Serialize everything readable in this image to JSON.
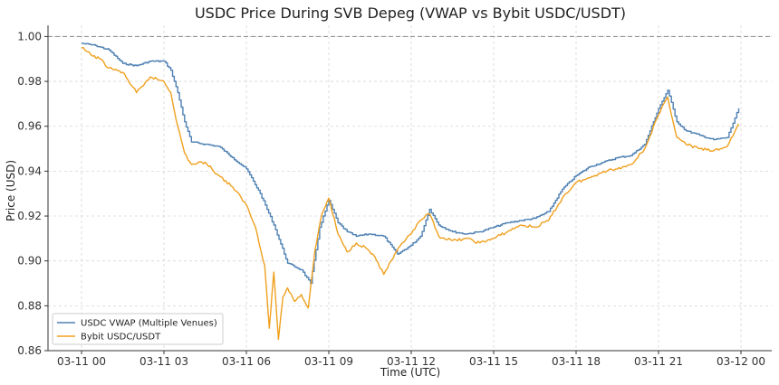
{
  "chart_data": {
    "type": "line",
    "title": "USDC Price During SVB Depeg (VWAP vs Bybit USDC/USDT)",
    "xlabel": "Time (UTC)",
    "ylabel": "Price (USD)",
    "xlim": [
      "03-11 00",
      "03-12 00"
    ],
    "ylim": [
      0.86,
      1.005
    ],
    "x_ticks": [
      "03-11 00",
      "03-11 03",
      "03-11 06",
      "03-11 09",
      "03-11 12",
      "03-11 15",
      "03-11 18",
      "03-11 21",
      "03-12 00"
    ],
    "y_ticks": [
      "0.86",
      "0.88",
      "0.90",
      "0.92",
      "0.94",
      "0.96",
      "0.98",
      "1.00"
    ],
    "reference_line": {
      "y": 1.0,
      "style": "dashed",
      "color": "#888888"
    },
    "grid": true,
    "legend": {
      "placement": "lower-left",
      "entries": [
        "USDC VWAP (Multiple Venues)",
        "Bybit USDC/USDT"
      ]
    },
    "series": [
      {
        "name": "USDC VWAP (Multiple Venues)",
        "color": "#4f81b3",
        "x": [
          "03-11 00:00",
          "03-11 00:30",
          "03-11 01:00",
          "03-11 01:30",
          "03-11 02:00",
          "03-11 02:30",
          "03-11 03:00",
          "03-11 03:15",
          "03-11 03:30",
          "03-11 03:45",
          "03-11 04:00",
          "03-11 04:30",
          "03-11 05:00",
          "03-11 05:30",
          "03-11 06:00",
          "03-11 06:30",
          "03-11 07:00",
          "03-11 07:30",
          "03-11 08:00",
          "03-11 08:20",
          "03-11 08:40",
          "03-11 09:00",
          "03-11 09:20",
          "03-11 09:40",
          "03-11 10:00",
          "03-11 10:30",
          "03-11 11:00",
          "03-11 11:30",
          "03-11 12:00",
          "03-11 12:20",
          "03-11 12:40",
          "03-11 13:00",
          "03-11 13:30",
          "03-11 14:00",
          "03-11 14:30",
          "03-11 15:00",
          "03-11 15:30",
          "03-11 16:00",
          "03-11 16:30",
          "03-11 17:00",
          "03-11 17:30",
          "03-11 18:00",
          "03-11 18:30",
          "03-11 19:00",
          "03-11 19:30",
          "03-11 20:00",
          "03-11 20:30",
          "03-11 21:00",
          "03-11 21:20",
          "03-11 21:40",
          "03-11 22:00",
          "03-11 22:30",
          "03-11 23:00",
          "03-11 23:30",
          "03-11 23:55"
        ],
        "values": [
          0.997,
          0.996,
          0.994,
          0.988,
          0.987,
          0.989,
          0.989,
          0.985,
          0.975,
          0.962,
          0.953,
          0.952,
          0.951,
          0.946,
          0.941,
          0.93,
          0.916,
          0.899,
          0.896,
          0.89,
          0.915,
          0.927,
          0.917,
          0.913,
          0.911,
          0.912,
          0.911,
          0.903,
          0.907,
          0.911,
          0.923,
          0.916,
          0.913,
          0.912,
          0.913,
          0.915,
          0.917,
          0.918,
          0.919,
          0.922,
          0.932,
          0.938,
          0.942,
          0.944,
          0.946,
          0.947,
          0.952,
          0.968,
          0.976,
          0.962,
          0.958,
          0.956,
          0.954,
          0.955,
          0.968
        ]
      },
      {
        "name": "Bybit USDC/USDT",
        "color": "#f0a01e",
        "x": [
          "03-11 00:00",
          "03-11 00:20",
          "03-11 00:40",
          "03-11 01:00",
          "03-11 01:30",
          "03-11 02:00",
          "03-11 02:15",
          "03-11 02:30",
          "03-11 03:00",
          "03-11 03:15",
          "03-11 03:30",
          "03-11 03:45",
          "03-11 04:00",
          "03-11 04:30",
          "03-11 05:00",
          "03-11 05:30",
          "03-11 06:00",
          "03-11 06:20",
          "03-11 06:40",
          "03-11 06:50",
          "03-11 07:00",
          "03-11 07:10",
          "03-11 07:20",
          "03-11 07:30",
          "03-11 07:45",
          "03-11 08:00",
          "03-11 08:15",
          "03-11 08:30",
          "03-11 08:45",
          "03-11 09:00",
          "03-11 09:20",
          "03-11 09:40",
          "03-11 10:00",
          "03-11 10:20",
          "03-11 10:40",
          "03-11 11:00",
          "03-11 11:20",
          "03-11 11:40",
          "03-11 12:00",
          "03-11 12:20",
          "03-11 12:40",
          "03-11 13:00",
          "03-11 13:30",
          "03-11 14:00",
          "03-11 14:30",
          "03-11 15:00",
          "03-11 15:30",
          "03-11 16:00",
          "03-11 16:30",
          "03-11 17:00",
          "03-11 17:30",
          "03-11 18:00",
          "03-11 18:30",
          "03-11 19:00",
          "03-11 19:30",
          "03-11 20:00",
          "03-11 20:30",
          "03-11 21:00",
          "03-11 21:20",
          "03-11 21:40",
          "03-11 22:00",
          "03-11 22:30",
          "03-11 23:00",
          "03-11 23:30",
          "03-11 23:55"
        ],
        "values": [
          0.995,
          0.992,
          0.99,
          0.986,
          0.984,
          0.975,
          0.978,
          0.982,
          0.98,
          0.975,
          0.96,
          0.948,
          0.943,
          0.944,
          0.938,
          0.933,
          0.925,
          0.915,
          0.898,
          0.87,
          0.895,
          0.865,
          0.884,
          0.888,
          0.882,
          0.885,
          0.879,
          0.905,
          0.921,
          0.928,
          0.912,
          0.904,
          0.908,
          0.906,
          0.902,
          0.894,
          0.901,
          0.908,
          0.912,
          0.918,
          0.921,
          0.911,
          0.909,
          0.91,
          0.908,
          0.91,
          0.913,
          0.916,
          0.915,
          0.918,
          0.928,
          0.935,
          0.937,
          0.94,
          0.941,
          0.943,
          0.95,
          0.965,
          0.973,
          0.955,
          0.952,
          0.95,
          0.949,
          0.951,
          0.961
        ]
      }
    ]
  }
}
